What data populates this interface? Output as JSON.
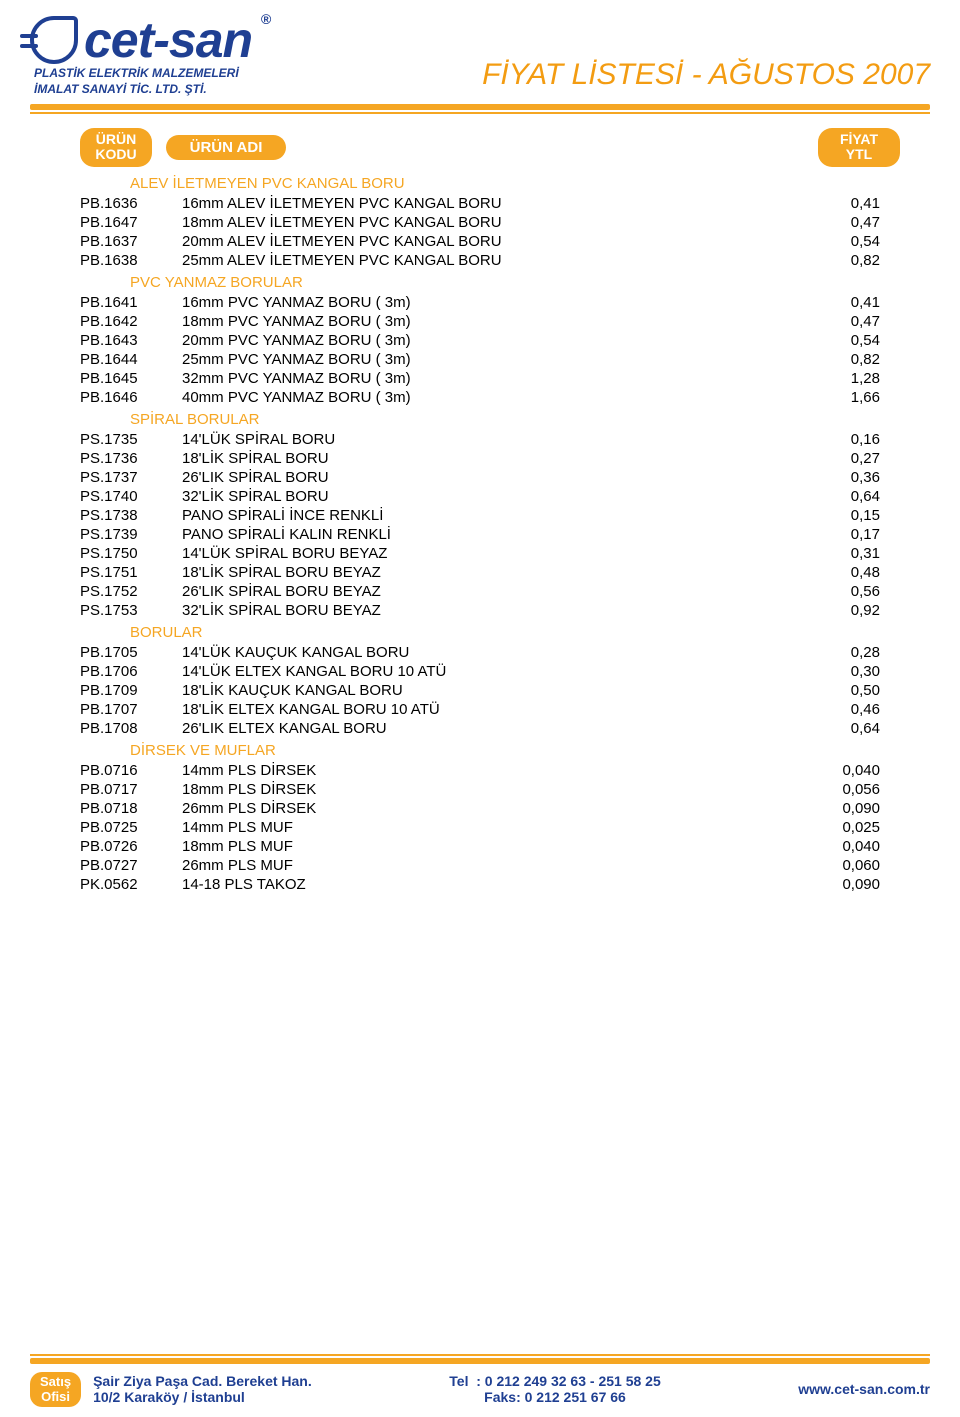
{
  "header": {
    "logo_text": "cet-san",
    "reg_mark": "®",
    "logo_sub_line1": "PLASTİK ELEKTRİK MALZEMELERİ",
    "logo_sub_line2": "İMALAT SANAYİ TİC. LTD. ŞTİ.",
    "doc_title": "FİYAT LİSTESİ - AĞUSTOS 2007"
  },
  "table_head": {
    "code1": "ÜRÜN",
    "code2": "KODU",
    "name": "ÜRÜN ADI",
    "price1": "FİYAT",
    "price2": "YTL"
  },
  "sections": [
    {
      "title": "ALEV İLETMEYEN PVC KANGAL BORU",
      "rows": [
        {
          "code": "PB.1636",
          "name": "16mm ALEV İLETMEYEN PVC KANGAL BORU",
          "price": "0,41"
        },
        {
          "code": "PB.1647",
          "name": "18mm ALEV İLETMEYEN PVC KANGAL BORU",
          "price": "0,47"
        },
        {
          "code": "PB.1637",
          "name": "20mm ALEV İLETMEYEN PVC KANGAL BORU",
          "price": "0,54"
        },
        {
          "code": "PB.1638",
          "name": "25mm ALEV İLETMEYEN PVC KANGAL BORU",
          "price": "0,82"
        }
      ]
    },
    {
      "title": "PVC YANMAZ BORULAR",
      "rows": [
        {
          "code": "PB.1641",
          "name": "16mm PVC YANMAZ BORU ( 3m)",
          "price": "0,41"
        },
        {
          "code": "PB.1642",
          "name": "18mm PVC YANMAZ BORU ( 3m)",
          "price": "0,47"
        },
        {
          "code": "PB.1643",
          "name": "20mm PVC YANMAZ BORU ( 3m)",
          "price": "0,54"
        },
        {
          "code": "PB.1644",
          "name": "25mm PVC YANMAZ BORU ( 3m)",
          "price": "0,82"
        },
        {
          "code": "PB.1645",
          "name": "32mm PVC YANMAZ BORU ( 3m)",
          "price": "1,28"
        },
        {
          "code": "PB.1646",
          "name": "40mm PVC YANMAZ BORU ( 3m)",
          "price": "1,66"
        }
      ]
    },
    {
      "title": "SPİRAL BORULAR",
      "rows": [
        {
          "code": "PS.1735",
          "name": "14'LÜK SPİRAL BORU",
          "price": "0,16"
        },
        {
          "code": "PS.1736",
          "name": "18'LİK SPİRAL BORU",
          "price": "0,27"
        },
        {
          "code": "PS.1737",
          "name": "26'LIK SPİRAL BORU",
          "price": "0,36"
        },
        {
          "code": "PS.1740",
          "name": "32'LİK SPİRAL BORU",
          "price": "0,64"
        },
        {
          "code": "PS.1738",
          "name": "PANO SPİRALİ İNCE RENKLİ",
          "price": "0,15"
        },
        {
          "code": "PS.1739",
          "name": "PANO SPİRALİ KALIN RENKLİ",
          "price": "0,17"
        },
        {
          "code": "PS.1750",
          "name": "14'LÜK SPİRAL BORU BEYAZ",
          "price": "0,31"
        },
        {
          "code": "PS.1751",
          "name": "18'LİK SPİRAL BORU BEYAZ",
          "price": "0,48"
        },
        {
          "code": "PS.1752",
          "name": "26'LIK SPİRAL BORU BEYAZ",
          "price": "0,56"
        },
        {
          "code": "PS.1753",
          "name": "32'LİK SPİRAL BORU BEYAZ",
          "price": "0,92"
        }
      ]
    },
    {
      "title": "BORULAR",
      "rows": [
        {
          "code": "PB.1705",
          "name": "14'LÜK KAUÇUK KANGAL BORU",
          "price": "0,28"
        },
        {
          "code": "PB.1706",
          "name": "14'LÜK ELTEX KANGAL BORU 10 ATÜ",
          "price": "0,30"
        },
        {
          "code": "PB.1709",
          "name": "18'LİK KAUÇUK KANGAL BORU",
          "price": "0,50"
        },
        {
          "code": "PB.1707",
          "name": "18'LİK ELTEX KANGAL BORU 10 ATÜ",
          "price": "0,46"
        },
        {
          "code": "PB.1708",
          "name": "26'LIK ELTEX KANGAL BORU",
          "price": "0,64"
        }
      ]
    },
    {
      "title": "DİRSEK VE MUFLAR",
      "rows": [
        {
          "code": "PB.0716",
          "name": "14mm PLS DİRSEK",
          "price": "0,040"
        },
        {
          "code": "PB.0717",
          "name": "18mm PLS DİRSEK",
          "price": "0,056"
        },
        {
          "code": "PB.0718",
          "name": "26mm PLS DİRSEK",
          "price": "0,090"
        },
        {
          "code": "PB.0725",
          "name": "14mm PLS MUF",
          "price": "0,025"
        },
        {
          "code": "PB.0726",
          "name": "18mm PLS MUF",
          "price": "0,040"
        },
        {
          "code": "PB.0727",
          "name": "26mm PLS MUF",
          "price": "0,060"
        },
        {
          "code": "PK.0562",
          "name": "14-18 PLS TAKOZ",
          "price": "0,090"
        }
      ]
    }
  ],
  "footer": {
    "pill1": "Satış",
    "pill2": "Ofisi",
    "addr1": "Şair Ziya Paşa Cad. Bereket Han.",
    "addr2": "10/2 Karaköy / İstanbul",
    "tel_label": "Tel",
    "tel": ": 0 212 249 32 63 - 251 58 25",
    "fax": "Faks: 0 212 251 67 66",
    "url": "www.cet-san.com.tr"
  },
  "colors": {
    "orange": "#f5a623",
    "blue": "#1f3f92",
    "black": "#000000",
    "white": "#ffffff"
  }
}
